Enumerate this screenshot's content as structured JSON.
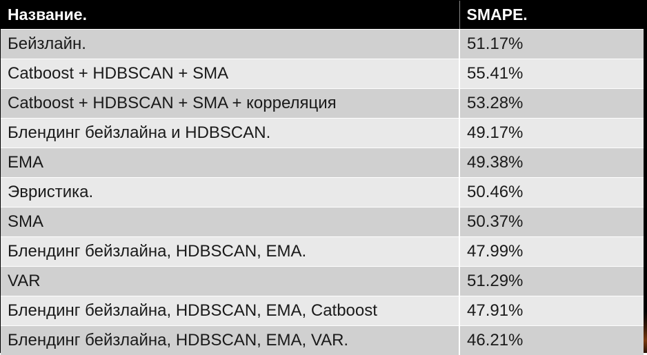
{
  "table": {
    "headers": [
      "Название.",
      "SMAPE."
    ],
    "rows": [
      {
        "name": "Бейзлайн.",
        "smape": "51.17%"
      },
      {
        "name": "Catboost + HDBSCAN + SMA",
        "smape": "55.41%"
      },
      {
        "name": "Catboost + HDBSCAN + SMA + корреляция",
        "smape": "53.28%"
      },
      {
        "name": "Блендинг бейзлайна и HDBSCAN.",
        "smape": "49.17%"
      },
      {
        "name": "EMA",
        "smape": "49.38%"
      },
      {
        "name": "Эвристика.",
        "smape": "50.46%"
      },
      {
        "name": "SMA",
        "smape": "50.37%"
      },
      {
        "name": "Блендинг бейзлайна, HDBSCAN, EMA.",
        "smape": "47.99%"
      },
      {
        "name": "VAR",
        "smape": "51.29%"
      },
      {
        "name": "Блендинг бейзлайна, HDBSCAN, EMA, Catboost",
        "smape": "47.91%"
      },
      {
        "name": "Блендинг бейзлайна, HDBSCAN, EMA, VAR.",
        "smape": "46.21%"
      }
    ]
  },
  "colors": {
    "header_bg": "#000000",
    "header_text": "#ffffff",
    "row_dark": "#d0d0d0",
    "row_light": "#e9e9e9"
  }
}
